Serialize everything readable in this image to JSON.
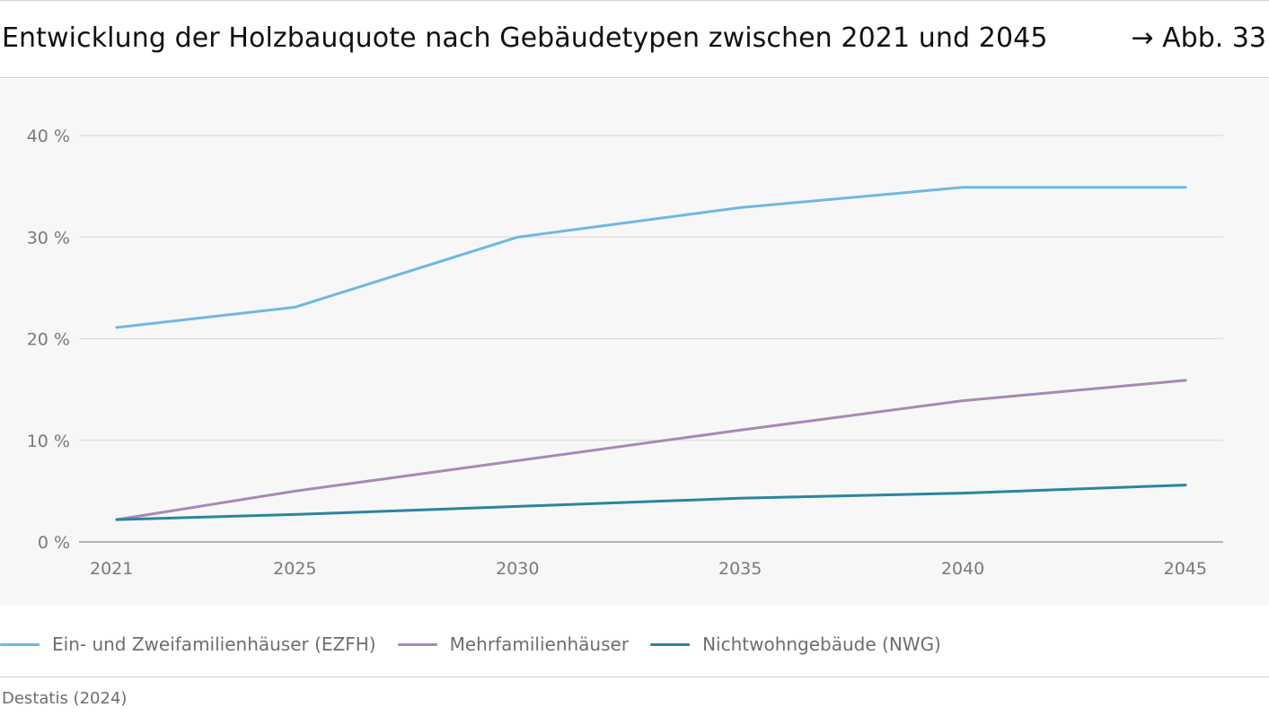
{
  "header": {
    "title": "Entwicklung der Holzbauquote nach Gebäudetypen zwischen 2021 und 2045",
    "figure_ref": "→ Abb. 33"
  },
  "source": "Destatis (2024)",
  "chart_data": {
    "type": "line",
    "title": "Entwicklung der Holzbauquote nach Gebäudetypen zwischen 2021 und 2045",
    "x": [
      2021,
      2025,
      2030,
      2035,
      2040,
      2045
    ],
    "x_tick_labels": [
      "2021",
      "2025",
      "2030",
      "2035",
      "2040",
      "2045"
    ],
    "y_ticks": [
      0,
      10,
      20,
      30,
      40
    ],
    "y_tick_labels": [
      "0 %",
      "10 %",
      "20 %",
      "30 %",
      "40 %"
    ],
    "ylim": [
      0,
      40
    ],
    "xlim": [
      2021,
      2045
    ],
    "grid": true,
    "legend_position": "bottom-left",
    "series": [
      {
        "name": "Ein- und Zweifamilienhäuser (EZFH)",
        "color": "#6db8e4",
        "values": [
          21.1,
          23.1,
          30.0,
          32.9,
          34.9,
          34.9
        ]
      },
      {
        "name": "Mehrfamilienhäuser",
        "color": "#aa87b8",
        "values": [
          2.2,
          5.0,
          8.0,
          11.0,
          13.9,
          15.9
        ]
      },
      {
        "name": "Nichtwohngebäude (NWG)",
        "color": "#2a85a0",
        "values": [
          2.2,
          2.7,
          3.5,
          4.3,
          4.8,
          5.6
        ]
      }
    ],
    "colors": {
      "grid": "#dcdcdc",
      "axis": "#8a8a8a",
      "background": "#f7f7f7"
    }
  }
}
